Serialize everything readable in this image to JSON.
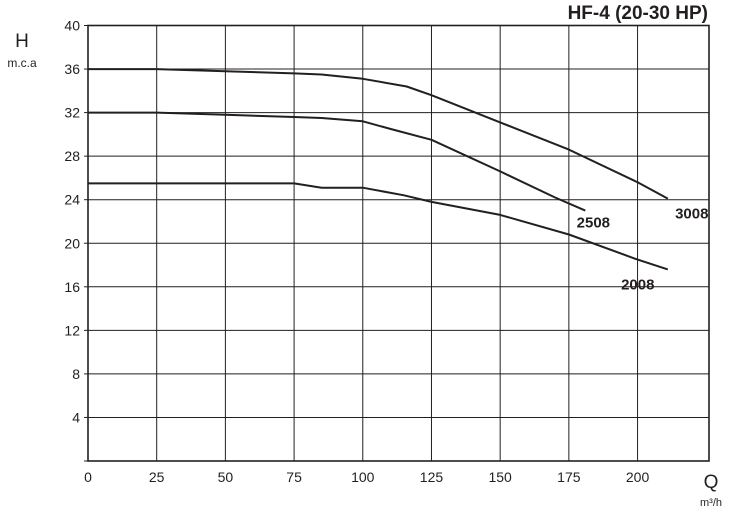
{
  "chart_data": {
    "type": "line",
    "title": "HF-4 (20-30 HP)",
    "ylabel": "H",
    "yunit": "m.c.a",
    "xlabel": "Q",
    "xunit": "m³/h",
    "xlim": [
      0,
      226
    ],
    "ylim": [
      0,
      40
    ],
    "xticks": [
      0,
      25,
      50,
      75,
      100,
      125,
      150,
      175,
      200
    ],
    "yticks": [
      4,
      8,
      12,
      16,
      20,
      24,
      28,
      32,
      36,
      40
    ],
    "grid": true,
    "colors": {
      "line": "#231f20",
      "grid": "#231f20"
    },
    "series": [
      {
        "name": "3008",
        "x": [
          0,
          25,
          50,
          75,
          85,
          100,
          116,
          125,
          150,
          175,
          200,
          211
        ],
        "y": [
          36,
          36,
          35.8,
          35.6,
          35.5,
          35.1,
          34.4,
          33.6,
          31.1,
          28.6,
          25.6,
          24.1
        ]
      },
      {
        "name": "2508",
        "x": [
          0,
          25,
          50,
          75,
          85,
          100,
          110,
          125,
          150,
          170,
          181
        ],
        "y": [
          32,
          32,
          31.8,
          31.6,
          31.5,
          31.2,
          30.5,
          29.5,
          26.6,
          24.2,
          23.0
        ]
      },
      {
        "name": "2008",
        "x": [
          0,
          25,
          50,
          75,
          85,
          100,
          115,
          125,
          150,
          175,
          200,
          211
        ],
        "y": [
          25.5,
          25.5,
          25.5,
          25.5,
          25.1,
          25.1,
          24.4,
          23.8,
          22.6,
          20.8,
          18.5,
          17.6
        ]
      }
    ]
  }
}
